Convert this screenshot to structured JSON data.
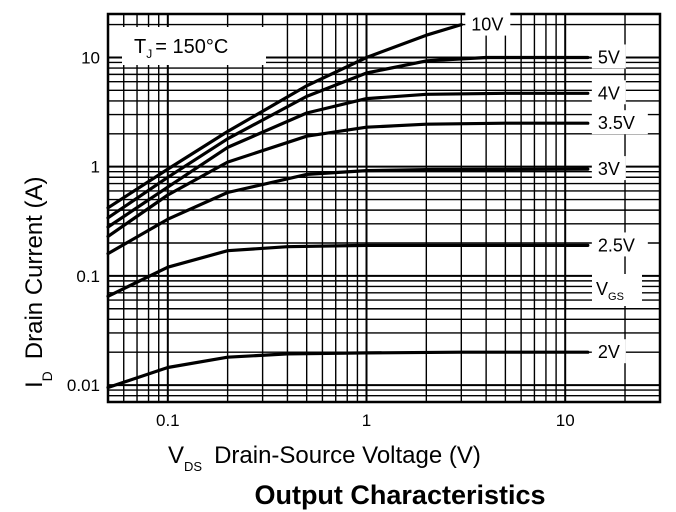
{
  "chart_data": {
    "type": "line",
    "title": "Output Characteristics",
    "xlabel_main": "V",
    "xlabel_sub": "DS",
    "xlabel_rest": "Drain-Source Voltage (V)",
    "ylabel_main": "I",
    "ylabel_sub": "D",
    "ylabel_rest": "Drain Current (A)",
    "annotation_main": "T",
    "annotation_sub": "J",
    "annotation_rest": "= 150°C",
    "legend_label_main": "V",
    "legend_label_sub": "GS",
    "x_scale": "log",
    "y_scale": "log",
    "xlim": [
      0.05,
      30
    ],
    "ylim": [
      0.007,
      25
    ],
    "grid": true,
    "x_ticks": [
      {
        "value": 0.1,
        "label": "0.1"
      },
      {
        "value": 1,
        "label": "1"
      },
      {
        "value": 10,
        "label": "10"
      }
    ],
    "y_ticks": [
      {
        "value": 0.01,
        "label": "0.01"
      },
      {
        "value": 0.1,
        "label": "0.1"
      },
      {
        "value": 1,
        "label": "1"
      },
      {
        "value": 10,
        "label": "10"
      }
    ],
    "series": [
      {
        "name": "10V",
        "x": [
          0.05,
          0.1,
          0.2,
          0.5,
          1,
          2,
          3
        ],
        "y": [
          0.42,
          0.95,
          2.1,
          5.5,
          10,
          16,
          20
        ]
      },
      {
        "name": "5V",
        "x": [
          0.05,
          0.1,
          0.2,
          0.5,
          1,
          2,
          4,
          10,
          13
        ],
        "y": [
          0.34,
          0.8,
          1.8,
          4.4,
          7.2,
          9.3,
          10,
          10,
          10
        ]
      },
      {
        "name": "4V",
        "x": [
          0.05,
          0.1,
          0.2,
          0.5,
          1,
          2,
          5,
          13
        ],
        "y": [
          0.28,
          0.65,
          1.5,
          3.1,
          4.2,
          4.6,
          4.7,
          4.7
        ]
      },
      {
        "name": "3.5V",
        "x": [
          0.05,
          0.1,
          0.2,
          0.5,
          1,
          2,
          5,
          13
        ],
        "y": [
          0.23,
          0.55,
          1.1,
          1.9,
          2.3,
          2.45,
          2.5,
          2.5
        ]
      },
      {
        "name": "3V",
        "x": [
          0.05,
          0.1,
          0.2,
          0.5,
          1,
          2,
          13
        ],
        "y": [
          0.16,
          0.33,
          0.58,
          0.85,
          0.92,
          0.94,
          0.95
        ]
      },
      {
        "name": "2.5V",
        "x": [
          0.05,
          0.1,
          0.2,
          0.4,
          1,
          3,
          13
        ],
        "y": [
          0.065,
          0.12,
          0.17,
          0.185,
          0.19,
          0.19,
          0.19
        ]
      },
      {
        "name": "2V",
        "x": [
          0.05,
          0.1,
          0.2,
          0.4,
          1,
          3,
          13
        ],
        "y": [
          0.0095,
          0.0145,
          0.018,
          0.0193,
          0.0197,
          0.02,
          0.02
        ]
      }
    ]
  }
}
